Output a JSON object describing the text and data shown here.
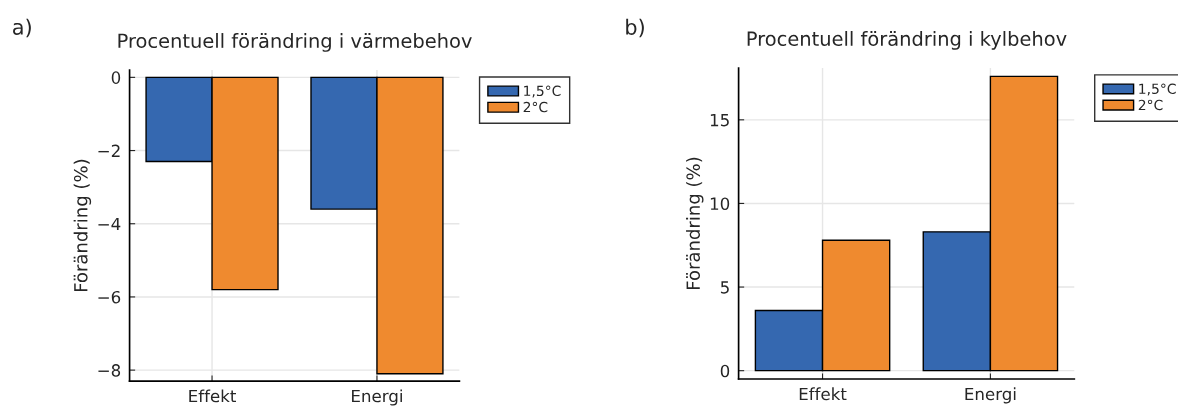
{
  "chart_data": [
    {
      "type": "bar",
      "title": "Procentuell förändring i värmebehov",
      "ylabel": "Förändring (%)",
      "categories": [
        "Effekt",
        "Energi"
      ],
      "series": [
        {
          "name": "1,5°C",
          "color": "#3568b0",
          "values": [
            -2.3,
            -3.6
          ]
        },
        {
          "name": "2°C",
          "color": "#ef8a2f",
          "values": [
            -5.8,
            -8.1
          ]
        }
      ],
      "ylim": [
        -8.3,
        0.2
      ],
      "yticks": [
        {
          "value": -8,
          "label": "−8"
        },
        {
          "value": -6,
          "label": "−6"
        },
        {
          "value": -4,
          "label": "−4"
        },
        {
          "value": -2,
          "label": "−2"
        },
        0
      ],
      "grid": true,
      "legend": "top right",
      "annotations": [
        "a)"
      ]
    },
    {
      "type": "bar",
      "title": "Procentuell förändring i kylbehov",
      "ylabel": "Förändring (%)",
      "categories": [
        "Effekt",
        "Energi"
      ],
      "series": [
        {
          "name": "1,5°C",
          "color": "#3568b0",
          "values": [
            3.6,
            8.3
          ]
        },
        {
          "name": "2°C",
          "color": "#ef8a2f",
          "values": [
            7.8,
            17.6
          ]
        }
      ],
      "ylim": [
        -0.5,
        18.1
      ],
      "yticks": [
        0,
        5,
        10,
        15
      ],
      "grid": true,
      "legend": "top right",
      "annotations": [
        "b)"
      ]
    }
  ]
}
